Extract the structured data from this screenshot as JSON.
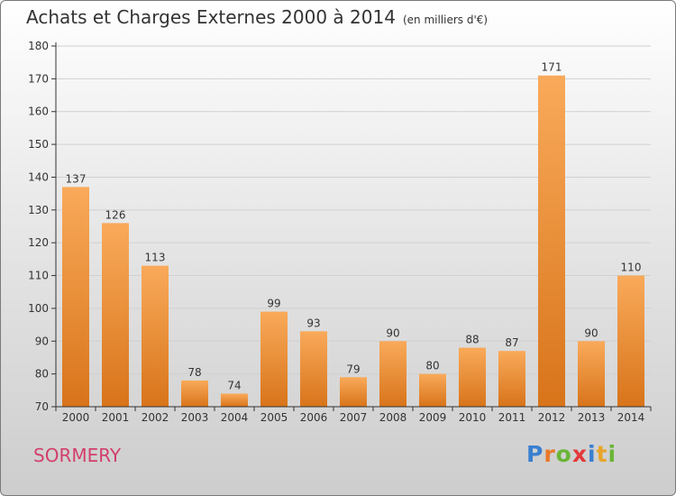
{
  "title": "Achats et Charges Externes 2000 à 2014",
  "unit": "(en milliers d'€)",
  "place": "SORMERY",
  "logo": {
    "text": "Proxiti",
    "letters": [
      "P",
      "r",
      "o",
      "x",
      "i",
      "t",
      "i"
    ],
    "colors": [
      "#3a7fd0",
      "#e8792a",
      "#6ab536",
      "#e23a3a",
      "#3a7fd0",
      "#e8a52a",
      "#6ab536"
    ]
  },
  "colors": {
    "bar_top": "#f9aa5a",
    "bar_bottom": "#d8741a",
    "place": "#d23f6b",
    "axis": "#333333"
  },
  "chart_data": {
    "type": "bar",
    "title": "Achats et Charges Externes 2000 à 2014",
    "subtitle": "(en milliers d'€)",
    "categories": [
      "2000",
      "2001",
      "2002",
      "2003",
      "2004",
      "2005",
      "2006",
      "2007",
      "2008",
      "2009",
      "2010",
      "2011",
      "2012",
      "2013",
      "2014"
    ],
    "values": [
      137,
      126,
      113,
      78,
      74,
      99,
      93,
      79,
      90,
      80,
      88,
      87,
      171,
      90,
      110
    ],
    "ylim": [
      70,
      180
    ],
    "yticks": [
      70,
      80,
      90,
      100,
      110,
      120,
      130,
      140,
      150,
      160,
      170,
      180
    ],
    "grid": true,
    "xlabel": "",
    "ylabel": ""
  }
}
